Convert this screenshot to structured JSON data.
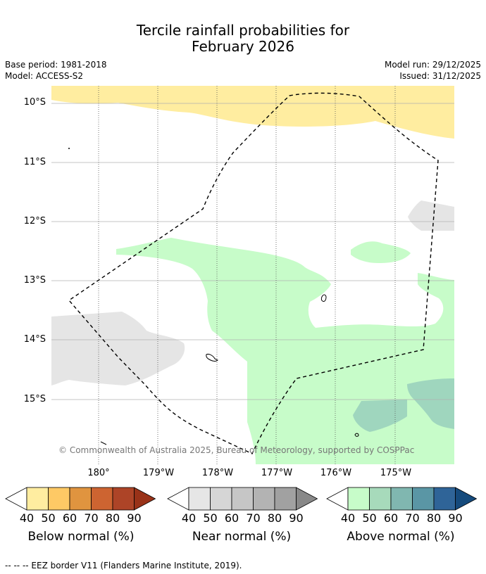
{
  "title": {
    "line1": "Tercile rainfall probabilities for",
    "line2": "February 2026"
  },
  "meta": {
    "base_period": "Base period: 1981-2018",
    "model": "Model: ACCESS-S2",
    "model_run": "Model run: 29/12/2025",
    "issued": "Issued: 31/12/2025"
  },
  "map": {
    "lat_labels": [
      "10°S",
      "11°S",
      "12°S",
      "13°S",
      "14°S",
      "15°S"
    ],
    "lon_labels": [
      "180°",
      "179°W",
      "178°W",
      "177°W",
      "176°W",
      "175°W"
    ],
    "copyright": "© Commonwealth of Australia 2025, Bureau of Meteorology, supported by COSPPac",
    "colors": {
      "below_40": "#ffeda0",
      "near_40": "#e5e5e5",
      "above_40": "#c7fcc9",
      "above_50": "#9fd6be",
      "grid": "#b0b0b0",
      "eez": "#000000"
    }
  },
  "colorbars": [
    {
      "title": "Below normal (%)",
      "ticks": [
        "40",
        "50",
        "60",
        "70",
        "80",
        "90"
      ],
      "colors": [
        "#ffeda0",
        "#fec965",
        "#e0943f",
        "#cd6431",
        "#ad4427",
        "#993218"
      ]
    },
    {
      "title": "Near normal (%)",
      "ticks": [
        "40",
        "50",
        "60",
        "70",
        "80",
        "90"
      ],
      "colors": [
        "#e6e6e6",
        "#d6d6d6",
        "#c6c6c6",
        "#b3b3b3",
        "#a1a1a1",
        "#888888"
      ]
    },
    {
      "title": "Above normal (%)",
      "ticks": [
        "40",
        "50",
        "60",
        "70",
        "80",
        "90"
      ],
      "colors": [
        "#c7fcc9",
        "#a7dabb",
        "#80b7b0",
        "#5a96a5",
        "#2f6498",
        "#154a7c"
      ]
    }
  ],
  "footnote": "--  --  -- EEZ border V11 (Flanders Marine Institute, 2019)."
}
